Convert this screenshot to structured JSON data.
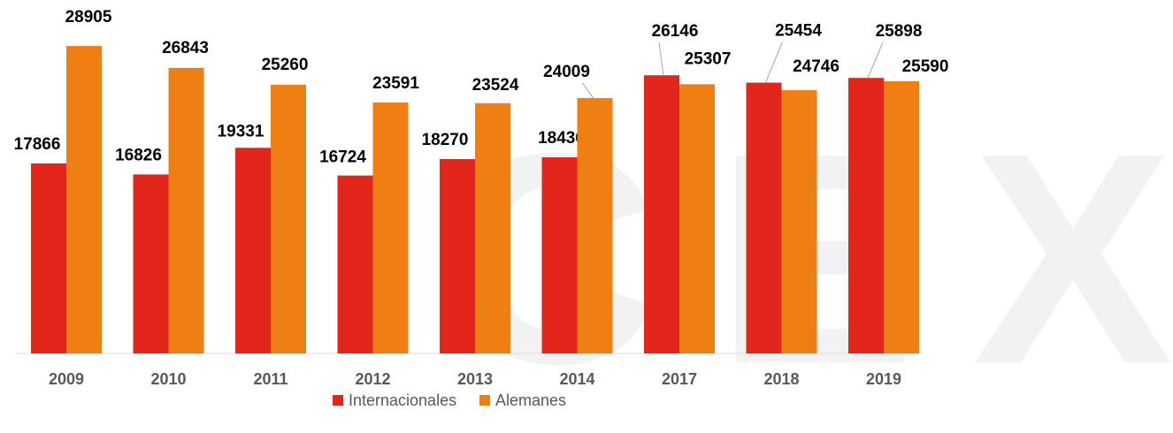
{
  "chart_data": {
    "type": "bar",
    "watermark": "CEX",
    "categories": [
      "2009",
      "2010",
      "2011",
      "2012",
      "2013",
      "2014",
      "2017",
      "2018",
      "2019"
    ],
    "series": [
      {
        "name": "Internacionales",
        "color": "#e3261b",
        "values": [
          17866,
          16826,
          19331,
          16724,
          18270,
          18436,
          26146,
          25454,
          25898
        ]
      },
      {
        "name": "Alemanes",
        "color": "#f07f13",
        "values": [
          28905,
          26843,
          25260,
          23591,
          23524,
          24009,
          25307,
          24746,
          25590
        ]
      }
    ],
    "ylim": [
      0,
      30000
    ],
    "legend": "bottom"
  }
}
